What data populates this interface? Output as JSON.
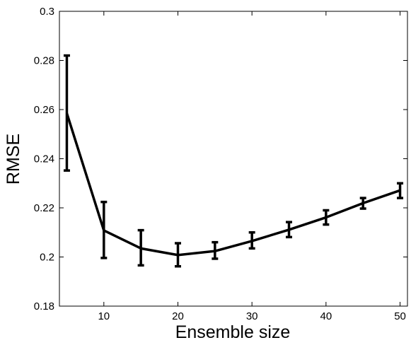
{
  "chart_data": {
    "type": "line",
    "title": "",
    "xlabel": "Ensemble size",
    "ylabel": "RMSE",
    "xlim": [
      4,
      51
    ],
    "ylim": [
      0.18,
      0.3
    ],
    "x_ticks": [
      10,
      20,
      30,
      40,
      50
    ],
    "x_tick_labels": [
      "10",
      "20",
      "30",
      "40",
      "50"
    ],
    "y_ticks": [
      0.18,
      0.2,
      0.22,
      0.24,
      0.26,
      0.28,
      0.3
    ],
    "y_tick_labels": [
      "0.18",
      "0.2",
      "0.22",
      "0.24",
      "0.26",
      "0.28",
      "0.3"
    ],
    "grid": false,
    "legend": "none",
    "line_color": "#000000",
    "series": [
      {
        "x": [
          5,
          10,
          15,
          20,
          25,
          30,
          35,
          40,
          45,
          50
        ],
        "y": [
          0.2585,
          0.2108,
          0.2035,
          0.2008,
          0.2024,
          0.2065,
          0.2111,
          0.2161,
          0.2219,
          0.2271
        ],
        "error_low": [
          0.2352,
          0.1996,
          0.1966,
          0.1962,
          0.1993,
          0.2035,
          0.2081,
          0.2132,
          0.2197,
          0.224
        ],
        "error_high": [
          0.282,
          0.2224,
          0.2109,
          0.2056,
          0.206,
          0.21,
          0.2142,
          0.219,
          0.224,
          0.23
        ]
      }
    ]
  }
}
